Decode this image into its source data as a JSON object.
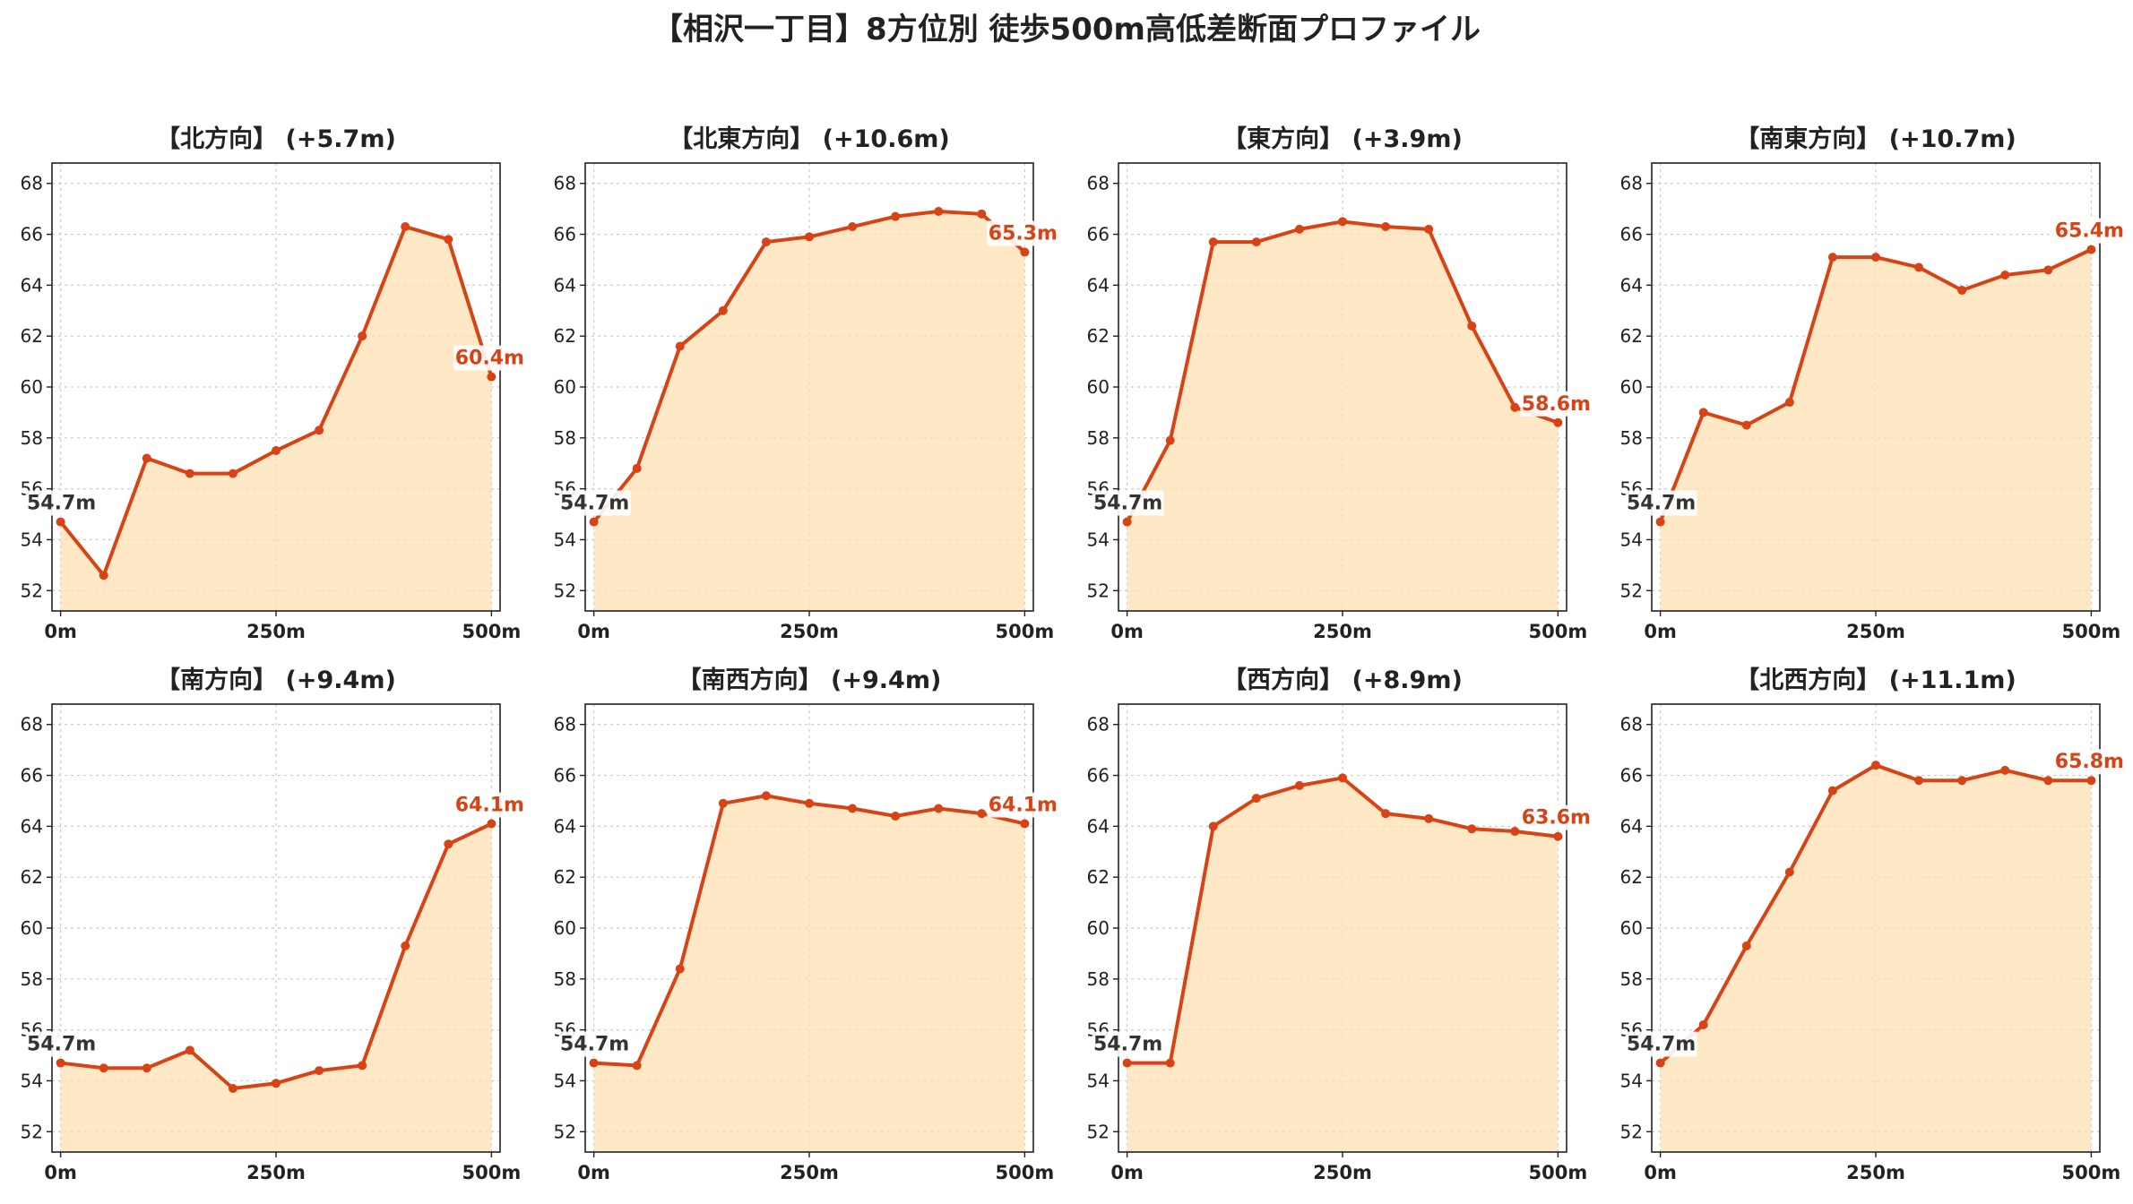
{
  "title": "【相沢一丁目】8方位別 徒歩500m高低差断面プロファイル",
  "colors": {
    "line": "#d84315",
    "fill": "#ffe0b2",
    "start_label": "#333333",
    "grid": "#cccccc"
  },
  "chart_data": [
    {
      "type": "area",
      "title": "【北方向】 (+5.7m)",
      "x": [
        0,
        50,
        100,
        150,
        200,
        250,
        300,
        350,
        400,
        450,
        500
      ],
      "y": [
        54.7,
        52.6,
        57.2,
        56.6,
        56.6,
        57.5,
        58.3,
        62.0,
        66.3,
        65.8,
        60.4
      ],
      "start_label": "54.7m",
      "end_label": "60.4m",
      "xticks": [
        "0m",
        "250m",
        "500m"
      ],
      "yticks": [
        "52",
        "54",
        "56",
        "58",
        "60",
        "62",
        "64",
        "66",
        "68"
      ],
      "xlim": [
        -10,
        510
      ],
      "ylim": [
        51.2,
        68.8
      ],
      "grid": true
    },
    {
      "type": "area",
      "title": "【北東方向】 (+10.6m)",
      "x": [
        0,
        50,
        100,
        150,
        200,
        250,
        300,
        350,
        400,
        450,
        500
      ],
      "y": [
        54.7,
        56.8,
        61.6,
        63.0,
        65.7,
        65.9,
        66.3,
        66.7,
        66.9,
        66.8,
        65.3
      ],
      "start_label": "54.7m",
      "end_label": "65.3m",
      "xticks": [
        "0m",
        "250m",
        "500m"
      ],
      "yticks": [
        "52",
        "54",
        "56",
        "58",
        "60",
        "62",
        "64",
        "66",
        "68"
      ],
      "xlim": [
        -10,
        510
      ],
      "ylim": [
        51.2,
        68.8
      ],
      "grid": true
    },
    {
      "type": "area",
      "title": "【東方向】 (+3.9m)",
      "x": [
        0,
        50,
        100,
        150,
        200,
        250,
        300,
        350,
        400,
        450,
        500
      ],
      "y": [
        54.7,
        57.9,
        65.7,
        65.7,
        66.2,
        66.5,
        66.3,
        66.2,
        62.4,
        59.2,
        58.6
      ],
      "start_label": "54.7m",
      "end_label": "58.6m",
      "xticks": [
        "0m",
        "250m",
        "500m"
      ],
      "yticks": [
        "52",
        "54",
        "56",
        "58",
        "60",
        "62",
        "64",
        "66",
        "68"
      ],
      "xlim": [
        -10,
        510
      ],
      "ylim": [
        51.2,
        68.8
      ],
      "grid": true
    },
    {
      "type": "area",
      "title": "【南東方向】 (+10.7m)",
      "x": [
        0,
        50,
        100,
        150,
        200,
        250,
        300,
        350,
        400,
        450,
        500
      ],
      "y": [
        54.7,
        59.0,
        58.5,
        59.4,
        65.1,
        65.1,
        64.7,
        63.8,
        64.4,
        64.6,
        65.4
      ],
      "start_label": "54.7m",
      "end_label": "65.4m",
      "xticks": [
        "0m",
        "250m",
        "500m"
      ],
      "yticks": [
        "52",
        "54",
        "56",
        "58",
        "60",
        "62",
        "64",
        "66",
        "68"
      ],
      "xlim": [
        -10,
        510
      ],
      "ylim": [
        51.2,
        68.8
      ],
      "grid": true
    },
    {
      "type": "area",
      "title": "【南方向】 (+9.4m)",
      "x": [
        0,
        50,
        100,
        150,
        200,
        250,
        300,
        350,
        400,
        450,
        500
      ],
      "y": [
        54.7,
        54.5,
        54.5,
        55.2,
        53.7,
        53.9,
        54.4,
        54.6,
        59.3,
        63.3,
        64.1
      ],
      "start_label": "54.7m",
      "end_label": "64.1m",
      "xticks": [
        "0m",
        "250m",
        "500m"
      ],
      "yticks": [
        "52",
        "54",
        "56",
        "58",
        "60",
        "62",
        "64",
        "66",
        "68"
      ],
      "xlim": [
        -10,
        510
      ],
      "ylim": [
        51.2,
        68.8
      ],
      "grid": true
    },
    {
      "type": "area",
      "title": "【南西方向】 (+9.4m)",
      "x": [
        0,
        50,
        100,
        150,
        200,
        250,
        300,
        350,
        400,
        450,
        500
      ],
      "y": [
        54.7,
        54.6,
        58.4,
        64.9,
        65.2,
        64.9,
        64.7,
        64.4,
        64.7,
        64.5,
        64.1
      ],
      "start_label": "54.7m",
      "end_label": "64.1m",
      "xticks": [
        "0m",
        "250m",
        "500m"
      ],
      "yticks": [
        "52",
        "54",
        "56",
        "58",
        "60",
        "62",
        "64",
        "66",
        "68"
      ],
      "xlim": [
        -10,
        510
      ],
      "ylim": [
        51.2,
        68.8
      ],
      "grid": true
    },
    {
      "type": "area",
      "title": "【西方向】 (+8.9m)",
      "x": [
        0,
        50,
        100,
        150,
        200,
        250,
        300,
        350,
        400,
        450,
        500
      ],
      "y": [
        54.7,
        54.7,
        64.0,
        65.1,
        65.6,
        65.9,
        64.5,
        64.3,
        63.9,
        63.8,
        63.6
      ],
      "start_label": "54.7m",
      "end_label": "63.6m",
      "xticks": [
        "0m",
        "250m",
        "500m"
      ],
      "yticks": [
        "52",
        "54",
        "56",
        "58",
        "60",
        "62",
        "64",
        "66",
        "68"
      ],
      "xlim": [
        -10,
        510
      ],
      "ylim": [
        51.2,
        68.8
      ],
      "grid": true
    },
    {
      "type": "area",
      "title": "【北西方向】 (+11.1m)",
      "x": [
        0,
        50,
        100,
        150,
        200,
        250,
        300,
        350,
        400,
        450,
        500
      ],
      "y": [
        54.7,
        56.2,
        59.3,
        62.2,
        65.4,
        66.4,
        65.8,
        65.8,
        66.2,
        65.8,
        65.8
      ],
      "start_label": "54.7m",
      "end_label": "65.8m",
      "xticks": [
        "0m",
        "250m",
        "500m"
      ],
      "yticks": [
        "52",
        "54",
        "56",
        "58",
        "60",
        "62",
        "64",
        "66",
        "68"
      ],
      "xlim": [
        -10,
        510
      ],
      "ylim": [
        51.2,
        68.8
      ],
      "grid": true
    }
  ]
}
